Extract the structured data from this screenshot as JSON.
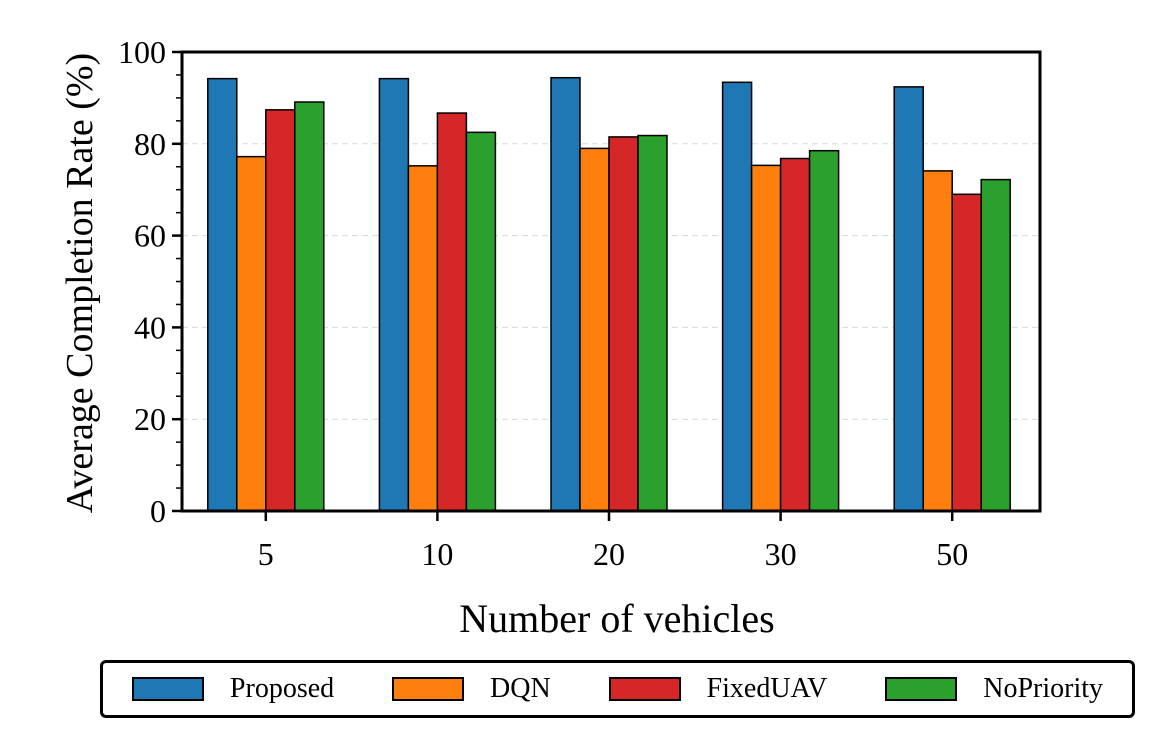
{
  "chart_data": {
    "type": "bar",
    "title": "",
    "xlabel": "Number of vehicles",
    "ylabel": "Average Completion Rate (%)",
    "categories": [
      "5",
      "10",
      "20",
      "30",
      "50"
    ],
    "ylim": [
      0,
      100
    ],
    "yticks": [
      0,
      20,
      40,
      60,
      80,
      100
    ],
    "grid": "y-dashed",
    "legend_position": "bottom",
    "series": [
      {
        "name": "Proposed",
        "color": "#1f77b4",
        "values": [
          94.2,
          94.2,
          94.4,
          93.4,
          92.4
        ]
      },
      {
        "name": "DQN",
        "color": "#ff7f0e",
        "values": [
          77.2,
          75.2,
          79.0,
          75.3,
          74.1
        ]
      },
      {
        "name": "FixedUAV",
        "color": "#d62728",
        "values": [
          87.4,
          86.7,
          81.5,
          76.8,
          69.0
        ]
      },
      {
        "name": "NoPriority",
        "color": "#2ca02c",
        "values": [
          89.1,
          82.5,
          81.8,
          78.5,
          72.2
        ]
      }
    ]
  }
}
